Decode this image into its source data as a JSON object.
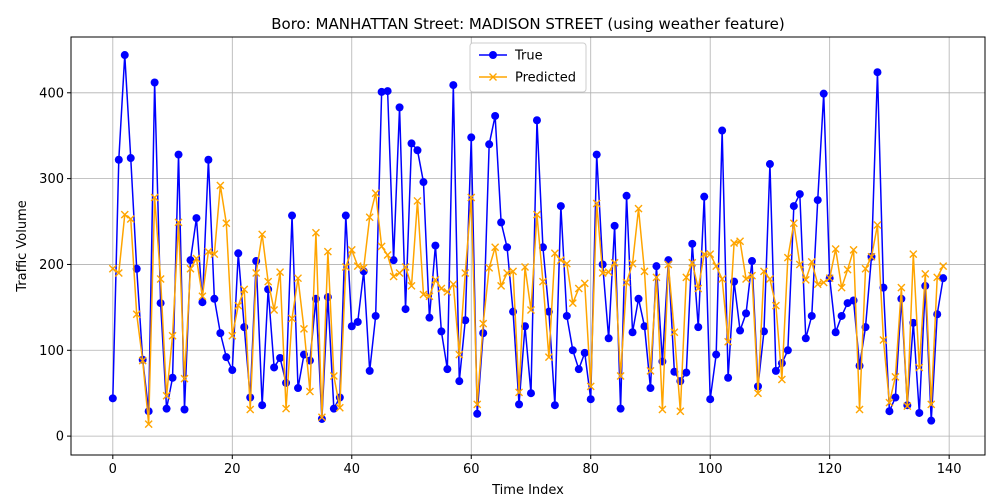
{
  "chart_data": {
    "type": "line",
    "title": "Boro: MANHATTAN Street: MADISON STREET (using weather feature)",
    "xlabel": "Time Index",
    "ylabel": "Traffic Volume",
    "xlim": [
      -7,
      146
    ],
    "ylim": [
      -22,
      465
    ],
    "xticks": [
      0,
      20,
      40,
      60,
      80,
      100,
      120,
      140
    ],
    "yticks": [
      0,
      100,
      200,
      300,
      400
    ],
    "grid": true,
    "legend_position": "top-center",
    "series": [
      {
        "name": "True",
        "color": "#0000ff",
        "marker": "circle",
        "values": [
          44,
          322,
          444,
          324,
          195,
          89,
          29,
          412,
          155,
          32,
          68,
          328,
          31,
          205,
          254,
          156,
          322,
          160,
          120,
          92,
          77,
          213,
          127,
          45,
          204,
          36,
          171,
          80,
          91,
          62,
          257,
          56,
          95,
          88,
          160,
          20,
          162,
          32,
          45,
          257,
          128,
          133,
          192,
          76,
          140,
          401,
          402,
          205,
          383,
          148,
          341,
          333,
          296,
          138,
          222,
          122,
          78,
          409,
          64,
          135,
          348,
          26,
          120,
          340,
          373,
          249,
          220,
          145,
          37,
          128,
          50,
          368,
          220,
          145,
          36,
          268,
          140,
          100,
          78,
          97,
          43,
          328,
          200,
          114,
          245,
          32,
          280,
          121,
          160,
          128,
          56,
          198,
          87,
          205,
          75,
          64,
          74,
          224,
          127,
          279,
          43,
          95,
          356,
          68,
          180,
          123,
          143,
          204,
          58,
          122,
          317,
          76,
          85,
          100,
          268,
          282,
          114,
          140,
          275,
          399,
          184,
          121,
          140,
          155,
          158,
          82,
          127,
          209,
          424,
          173,
          29,
          45,
          160,
          36,
          132,
          27,
          175,
          18,
          142,
          184
        ]
      },
      {
        "name": "Predicted",
        "color": "#ffa500",
        "marker": "x",
        "values": [
          195,
          190,
          258,
          253,
          142,
          88,
          14,
          278,
          183,
          47,
          117,
          249,
          67,
          195,
          207,
          163,
          215,
          212,
          292,
          248,
          117,
          152,
          171,
          31,
          190,
          235,
          180,
          147,
          191,
          32,
          137,
          184,
          125,
          52,
          237,
          22,
          215,
          70,
          33,
          197,
          217,
          198,
          196,
          255,
          283,
          221,
          211,
          186,
          190,
          197,
          175,
          274,
          165,
          163,
          182,
          172,
          168,
          177,
          95,
          190,
          278,
          37,
          131,
          196,
          220,
          175,
          190,
          192,
          51,
          197,
          147,
          258,
          180,
          92,
          213,
          205,
          201,
          155,
          172,
          178,
          58,
          271,
          190,
          191,
          202,
          70,
          179,
          201,
          265,
          192,
          76,
          185,
          31,
          200,
          121,
          29,
          185,
          202,
          172,
          212,
          212,
          198,
          183,
          110,
          225,
          227,
          183,
          187,
          50,
          192,
          183,
          152,
          66,
          208,
          248,
          200,
          182,
          203,
          177,
          179,
          184,
          218,
          173,
          194,
          217,
          31,
          195,
          209,
          246,
          112,
          39,
          69,
          173,
          35,
          212,
          80,
          189,
          37,
          185,
          198
        ]
      }
    ]
  }
}
